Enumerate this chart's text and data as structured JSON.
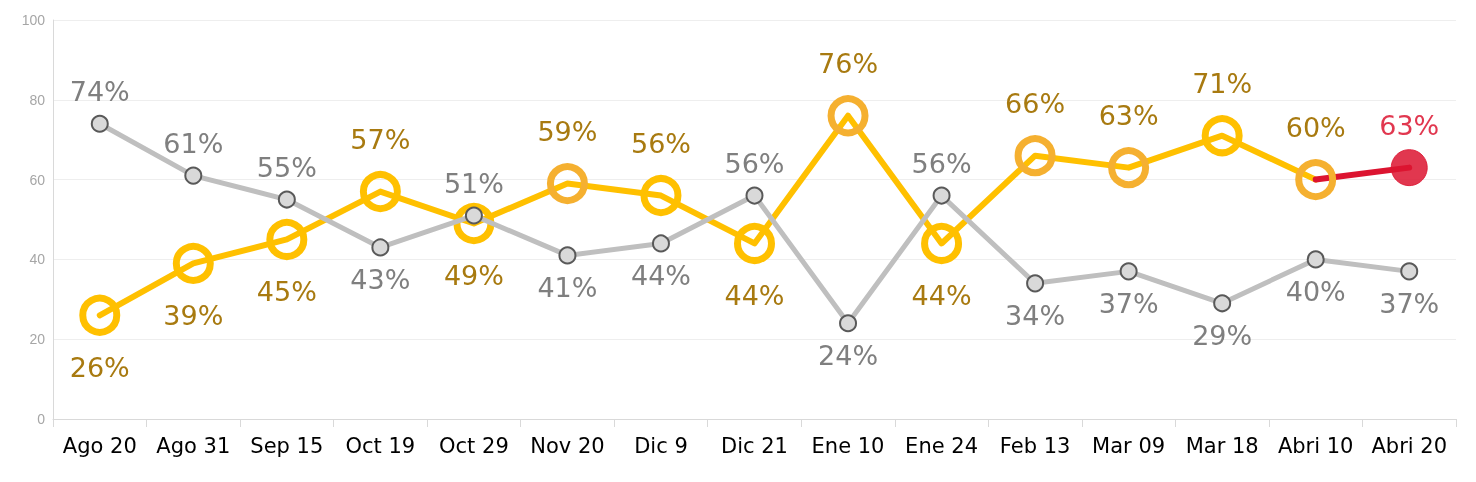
{
  "chart_data": {
    "type": "line",
    "categories": [
      "Ago 20",
      "Ago 31",
      "Sep 15",
      "Oct 19",
      "Oct 29",
      "Nov 20",
      "Dic 9",
      "Dic 21",
      "Ene 10",
      "Ene 24",
      "Feb 13",
      "Mar 09",
      "Mar 18",
      "Abri 10",
      "Abri 20"
    ],
    "series": [
      {
        "color": "#ffc000",
        "colors": [
          "#ffc000",
          "#ffc000",
          "#ffc000",
          "#ffc000",
          "#ffc000",
          "#f5b030",
          "#ffc000",
          "#ffc000",
          "#f5b030",
          "#ffc000",
          "#f5b030",
          "#f5b030",
          "#ffc000",
          "#f5b030",
          null
        ],
        "values": [
          26,
          39,
          45,
          57,
          49,
          59,
          56,
          44,
          76,
          44,
          66,
          63,
          71,
          60,
          null
        ],
        "value_labels": [
          "26%",
          "39%",
          "45%",
          "57%",
          "49%",
          "59%",
          "56%",
          "44%",
          "76%",
          "44%",
          "66%",
          "63%",
          "71%",
          "60%",
          null
        ]
      },
      {
        "color": "#bfbfbf",
        "values": [
          74,
          61,
          55,
          43,
          51,
          41,
          44,
          56,
          24,
          56,
          34,
          37,
          29,
          40,
          37
        ],
        "value_labels": [
          "74%",
          "61%",
          "55%",
          "43%",
          "51%",
          "41%",
          "44%",
          "56%",
          "24%",
          "56%",
          "34%",
          "37%",
          "29%",
          "40%",
          "37%"
        ]
      },
      {
        "color": "#dc1430",
        "values": [
          null,
          null,
          null,
          null,
          null,
          null,
          null,
          null,
          null,
          null,
          null,
          null,
          null,
          60,
          63
        ],
        "value_labels": [
          null,
          null,
          null,
          null,
          null,
          null,
          null,
          null,
          null,
          null,
          null,
          null,
          null,
          null,
          "63%"
        ]
      }
    ],
    "ylim": [
      0,
      100
    ],
    "yticks": [
      0,
      20,
      40,
      60,
      80,
      100
    ],
    "grid": "y",
    "marker": "circle"
  }
}
